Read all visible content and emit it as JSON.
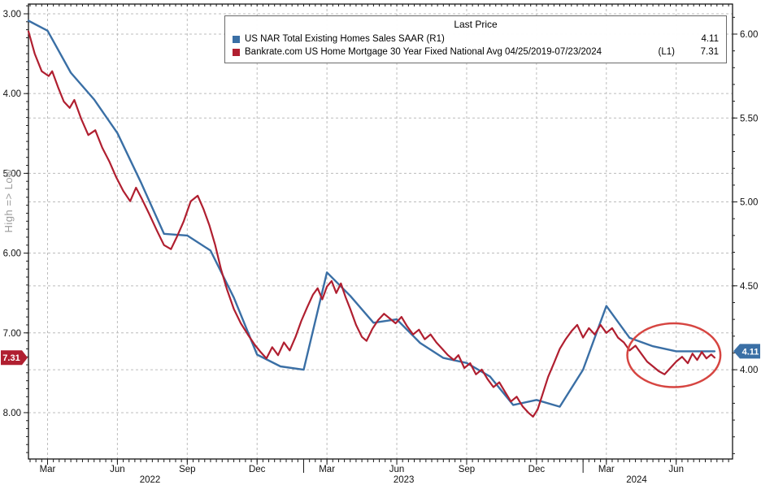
{
  "side_label": "High => Low",
  "legend": {
    "title": "Last Price",
    "items": [
      {
        "label": "US NAR Total Existing Homes Sales SAAR  (R1)",
        "tag": "",
        "value": "4.11",
        "color": "#3a6fa5"
      },
      {
        "label": "Bankrate.com US Home Mortgage 30 Year Fixed National Avg 04/25/2019-07/23/2024",
        "tag": "(L1)",
        "value": "7.31",
        "color": "#b01f30"
      }
    ]
  },
  "chart_data": {
    "type": "line",
    "title": "Last Price",
    "x_unit": "months since 2022-01-01",
    "x_domain": [
      1.18,
      31.42
    ],
    "x_ticks": [
      {
        "m": 2,
        "label": "Mar"
      },
      {
        "m": 5,
        "label": "Jun"
      },
      {
        "m": 8,
        "label": "Sep"
      },
      {
        "m": 11,
        "label": "Dec"
      },
      {
        "m": 14,
        "label": "Mar"
      },
      {
        "m": 17,
        "label": "Jun"
      },
      {
        "m": 20,
        "label": "Sep"
      },
      {
        "m": 23,
        "label": "Dec"
      },
      {
        "m": 26,
        "label": "Mar"
      },
      {
        "m": 29,
        "label": "Jun"
      }
    ],
    "year_labels": [
      {
        "m": 6.4,
        "label": "2022"
      },
      {
        "m": 17.3,
        "label": "2023"
      },
      {
        "m": 27.3,
        "label": "2024"
      }
    ],
    "year_separators": [
      13,
      25
    ],
    "left_axis": {
      "title": "High => Low",
      "inverted": true,
      "domain": [
        2.878,
        8.581
      ],
      "ticks": [
        {
          "v": 3,
          "label": "3.00"
        },
        {
          "v": 4,
          "label": "4.00"
        },
        {
          "v": 5,
          "label": "5.00"
        },
        {
          "v": 6,
          "label": "6.00"
        },
        {
          "v": 7,
          "label": "7.00"
        },
        {
          "v": 8,
          "label": "8.00"
        }
      ],
      "badge": {
        "value": "7.31",
        "v": 7.31,
        "color": "#b01f30"
      }
    },
    "right_axis": {
      "domain": [
        6.179,
        3.468
      ],
      "ticks": [
        {
          "v": 6.0,
          "label": "6.00"
        },
        {
          "v": 5.5,
          "label": "5.50"
        },
        {
          "v": 5.0,
          "label": "5.00"
        },
        {
          "v": 4.5,
          "label": "4.50"
        },
        {
          "v": 4.0,
          "label": "4.00"
        }
      ],
      "badge": {
        "value": "4.11",
        "v": 4.11,
        "color": "#3a6fa5"
      }
    },
    "series": [
      {
        "id": "existing-home-sales",
        "name": "US NAR Total Existing Homes Sales SAAR",
        "axis": "right",
        "color": "#3a6fa5",
        "width": 2.4,
        "last_price": 4.11,
        "points": [
          [
            1.18,
            6.08
          ],
          [
            2,
            6.02
          ],
          [
            3,
            5.77
          ],
          [
            4,
            5.61
          ],
          [
            5,
            5.41
          ],
          [
            6,
            5.12
          ],
          [
            7,
            4.81
          ],
          [
            8,
            4.8
          ],
          [
            9,
            4.71
          ],
          [
            10,
            4.43
          ],
          [
            11,
            4.09
          ],
          [
            12,
            4.02
          ],
          [
            13,
            4.0
          ],
          [
            14,
            4.58
          ],
          [
            15,
            4.44
          ],
          [
            16,
            4.28
          ],
          [
            17,
            4.3
          ],
          [
            18,
            4.16
          ],
          [
            19,
            4.07
          ],
          [
            20,
            4.04
          ],
          [
            21,
            3.96
          ],
          [
            22,
            3.79
          ],
          [
            23,
            3.82
          ],
          [
            24,
            3.78
          ],
          [
            25,
            4.0
          ],
          [
            26,
            4.38
          ],
          [
            27,
            4.19
          ],
          [
            28,
            4.14
          ],
          [
            29,
            4.11
          ],
          [
            30.65,
            4.11
          ]
        ]
      },
      {
        "id": "mortgage-rate-30y",
        "name": "Bankrate.com US Home Mortgage 30 Year Fixed National Avg",
        "axis": "left",
        "color": "#b01f30",
        "width": 2.2,
        "last_price": 7.31,
        "points": [
          [
            1.18,
            3.22
          ],
          [
            1.45,
            3.5
          ],
          [
            1.75,
            3.72
          ],
          [
            2.05,
            3.78
          ],
          [
            2.2,
            3.72
          ],
          [
            2.45,
            3.92
          ],
          [
            2.7,
            4.1
          ],
          [
            2.95,
            4.18
          ],
          [
            3.15,
            4.08
          ],
          [
            3.45,
            4.32
          ],
          [
            3.75,
            4.52
          ],
          [
            4.05,
            4.46
          ],
          [
            4.35,
            4.68
          ],
          [
            4.65,
            4.85
          ],
          [
            4.95,
            5.05
          ],
          [
            5.25,
            5.22
          ],
          [
            5.55,
            5.35
          ],
          [
            5.8,
            5.18
          ],
          [
            6.05,
            5.32
          ],
          [
            6.35,
            5.5
          ],
          [
            6.7,
            5.72
          ],
          [
            7,
            5.9
          ],
          [
            7.3,
            5.95
          ],
          [
            7.55,
            5.8
          ],
          [
            7.85,
            5.6
          ],
          [
            8.15,
            5.35
          ],
          [
            8.45,
            5.28
          ],
          [
            8.7,
            5.45
          ],
          [
            8.95,
            5.65
          ],
          [
            9.2,
            5.9
          ],
          [
            9.45,
            6.2
          ],
          [
            9.7,
            6.45
          ],
          [
            10,
            6.7
          ],
          [
            10.3,
            6.88
          ],
          [
            10.6,
            7.02
          ],
          [
            10.9,
            7.15
          ],
          [
            11.15,
            7.24
          ],
          [
            11.4,
            7.32
          ],
          [
            11.65,
            7.18
          ],
          [
            11.9,
            7.28
          ],
          [
            12.15,
            7.12
          ],
          [
            12.4,
            7.22
          ],
          [
            12.65,
            7.05
          ],
          [
            12.9,
            6.85
          ],
          [
            13.15,
            6.68
          ],
          [
            13.4,
            6.52
          ],
          [
            13.6,
            6.44
          ],
          [
            13.8,
            6.58
          ],
          [
            14,
            6.42
          ],
          [
            14.2,
            6.35
          ],
          [
            14.4,
            6.5
          ],
          [
            14.6,
            6.38
          ],
          [
            14.8,
            6.55
          ],
          [
            15,
            6.7
          ],
          [
            15.25,
            6.9
          ],
          [
            15.5,
            7.05
          ],
          [
            15.7,
            7.1
          ],
          [
            15.95,
            6.95
          ],
          [
            16.2,
            6.84
          ],
          [
            16.45,
            6.76
          ],
          [
            16.7,
            6.82
          ],
          [
            16.95,
            6.88
          ],
          [
            17.2,
            6.8
          ],
          [
            17.45,
            6.92
          ],
          [
            17.7,
            7.02
          ],
          [
            17.95,
            6.96
          ],
          [
            18.2,
            7.08
          ],
          [
            18.45,
            7.02
          ],
          [
            18.7,
            7.12
          ],
          [
            18.95,
            7.2
          ],
          [
            19.2,
            7.28
          ],
          [
            19.45,
            7.34
          ],
          [
            19.65,
            7.28
          ],
          [
            19.9,
            7.44
          ],
          [
            20.15,
            7.38
          ],
          [
            20.4,
            7.52
          ],
          [
            20.65,
            7.46
          ],
          [
            20.9,
            7.58
          ],
          [
            21.15,
            7.68
          ],
          [
            21.4,
            7.62
          ],
          [
            21.65,
            7.74
          ],
          [
            21.9,
            7.86
          ],
          [
            22.15,
            7.8
          ],
          [
            22.4,
            7.92
          ],
          [
            22.65,
            8.0
          ],
          [
            22.85,
            8.05
          ],
          [
            23.05,
            7.96
          ],
          [
            23.25,
            7.78
          ],
          [
            23.5,
            7.55
          ],
          [
            23.75,
            7.38
          ],
          [
            24,
            7.2
          ],
          [
            24.25,
            7.08
          ],
          [
            24.5,
            6.98
          ],
          [
            24.75,
            6.9
          ],
          [
            25,
            7.06
          ],
          [
            25.25,
            6.94
          ],
          [
            25.5,
            7.02
          ],
          [
            25.75,
            6.9
          ],
          [
            26,
            7.0
          ],
          [
            26.25,
            6.94
          ],
          [
            26.5,
            7.06
          ],
          [
            26.75,
            7.12
          ],
          [
            27,
            7.22
          ],
          [
            27.25,
            7.16
          ],
          [
            27.5,
            7.26
          ],
          [
            27.75,
            7.36
          ],
          [
            28,
            7.42
          ],
          [
            28.25,
            7.48
          ],
          [
            28.5,
            7.52
          ],
          [
            28.75,
            7.44
          ],
          [
            29,
            7.36
          ],
          [
            29.25,
            7.3
          ],
          [
            29.5,
            7.38
          ],
          [
            29.7,
            7.26
          ],
          [
            29.9,
            7.34
          ],
          [
            30.1,
            7.24
          ],
          [
            30.3,
            7.32
          ],
          [
            30.5,
            7.27
          ],
          [
            30.65,
            7.31
          ]
        ]
      }
    ],
    "annotation_ellipse": {
      "cx": 28.9,
      "cy": 7.28,
      "rx": 2.0,
      "ry": 0.4,
      "color": "#d64541"
    },
    "style": {
      "grid_color": "#bcbcbc",
      "frame_color": "#000000",
      "tick_color": "#1a1a1a",
      "text_color": "#111111",
      "background": "#ffffff"
    },
    "legend_position": "top-center",
    "grid": true
  }
}
